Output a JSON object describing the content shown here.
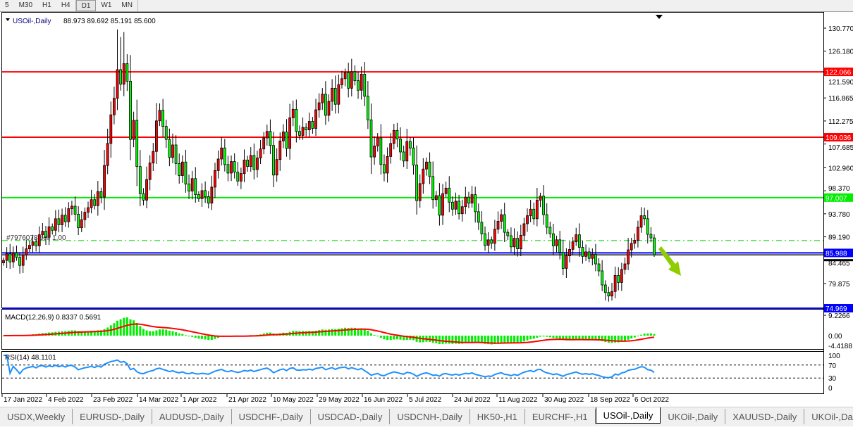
{
  "toolbar": {
    "timeframes": [
      {
        "label": "5",
        "active": false
      },
      {
        "label": "M30",
        "active": false
      },
      {
        "label": "H1",
        "active": false
      },
      {
        "label": "H4",
        "active": false
      },
      {
        "label": "D1",
        "active": true
      },
      {
        "label": "W1",
        "active": false
      },
      {
        "label": "MN",
        "active": false
      }
    ]
  },
  "chart": {
    "symbol": "USOil-,Daily",
    "ohlc_text": "88.973 89.692 85.191 85.600",
    "last_ohlc": [
      88.973,
      89.692,
      85.191,
      85.6
    ],
    "colors": {
      "bull_body": "#ff0000",
      "bear_body": "#00ff00",
      "wick": "#000000"
    },
    "price_ticks": [
      "130.770",
      "126.180",
      "121.590",
      "116.865",
      "112.275",
      "107.685",
      "102.960",
      "98.370",
      "93.780",
      "89.190",
      "84.465",
      "79.875"
    ],
    "price_range": [
      74.2,
      133.8
    ],
    "closes": [
      84.5,
      85.8,
      84.2,
      86.0,
      85.1,
      83.5,
      85.6,
      86.8,
      87.5,
      88.2,
      87.4,
      89.6,
      90.3,
      89.1,
      91.2,
      90.5,
      92.8,
      91.6,
      93.5,
      92.2,
      94.8,
      95.3,
      93.7,
      91.0,
      92.6,
      94.1,
      95.0,
      96.6,
      95.4,
      98.2,
      97.1,
      103.4,
      107.8,
      113.5,
      116.8,
      122.5,
      119.6,
      123.7,
      120.2,
      108.6,
      112.4,
      103.2,
      97.8,
      96.5,
      100.6,
      103.9,
      106.2,
      112.3,
      114.4,
      111.2,
      108.6,
      105.0,
      107.5,
      103.8,
      101.4,
      104.1,
      99.7,
      98.3,
      100.8,
      97.6,
      96.8,
      98.4,
      97.2,
      95.9,
      99.1,
      102.4,
      104.7,
      106.9,
      103.6,
      101.9,
      104.2,
      102.1,
      100.3,
      101.8,
      104.5,
      103.2,
      105.4,
      102.6,
      104.9,
      106.7,
      108.9,
      110.2,
      107.4,
      101.5,
      104.6,
      108.3,
      110.1,
      106.8,
      112.9,
      114.6,
      110.2,
      109.4,
      111.0,
      110.5,
      112.2,
      110.8,
      114.5,
      115.9,
      117.6,
      113.4,
      116.2,
      118.8,
      115.6,
      119.5,
      120.7,
      121.9,
      118.8,
      122.1,
      120.3,
      118.4,
      121.6,
      117.2,
      112.5,
      105.1,
      107.3,
      108.9,
      103.6,
      101.9,
      105.2,
      107.8,
      110.4,
      108.7,
      106.1,
      104.3,
      108.2,
      106.9,
      103.5,
      96.4,
      99.8,
      102.7,
      104.1,
      101.2,
      96.6,
      97.4,
      93.5,
      97.8,
      98.9,
      96.1,
      94.7,
      96.3,
      93.8,
      95.2,
      97.1,
      95.9,
      97.6,
      94.2,
      92.1,
      89.8,
      87.5,
      88.6,
      87.9,
      90.7,
      92.3,
      93.6,
      90.1,
      89.4,
      87.2,
      88.9,
      86.8,
      89.5,
      91.8,
      93.4,
      94.7,
      92.8,
      96.5,
      97.3,
      93.6,
      91.1,
      89.8,
      87.4,
      88.6,
      86.1,
      82.9,
      85.4,
      86.7,
      88.2,
      89.6,
      87.1,
      85.3,
      86.2,
      84.9,
      85.7,
      83.8,
      82.4,
      79.6,
      78.1,
      77.4,
      78.3,
      81.5,
      80.1,
      82.7,
      83.8,
      86.6,
      87.9,
      88.5,
      91.1,
      93.4,
      92.8,
      89.7,
      88.973,
      85.6
    ],
    "levels": [
      {
        "price": 122.066,
        "label": "122.066",
        "color": "#ff0000",
        "style": "solid"
      },
      {
        "price": 109.036,
        "label": "109.036",
        "color": "#ff0000",
        "style": "solid"
      },
      {
        "price": 97.007,
        "label": "97.007",
        "color": "#00ee00",
        "style": "solid"
      },
      {
        "price": 88.45,
        "label": "",
        "color": "#00cc00",
        "style": "dashdot"
      },
      {
        "price": 85.988,
        "label": "85.988",
        "color": "#0000ff",
        "style": "solid"
      },
      {
        "price": 85.6,
        "label": "",
        "color": "#000000",
        "style": "solid"
      },
      {
        "price": 74.969,
        "label": "74.969",
        "color": "#0000ff",
        "style": "solid"
      }
    ],
    "order_label": "#7976078 sell 1.00",
    "arrow_color": "#8fcc00",
    "date_labels": [
      "17 Jan 2022",
      "4 Feb 2022",
      "23 Feb 2022",
      "14 Mar 2022",
      "1 Apr 2022",
      "21 Apr 2022",
      "10 May 2022",
      "29 May 2022",
      "16 Jun 2022",
      "5 Jul 2022",
      "24 Jul 2022",
      "11 Aug 2022",
      "30 Aug 2022",
      "18 Sep 2022",
      "6 Oct 2022"
    ]
  },
  "macd": {
    "label": "MACD(12,26,9) 0.8337 0.5691",
    "ticks": [
      "9.2266",
      "0.00",
      "-4.4188"
    ],
    "range": [
      -4.4188,
      9.2266
    ],
    "hist_color": "#00ee00",
    "signal_color": "#ff0000"
  },
  "rsi": {
    "label": "RSI(14) 48.1101",
    "ticks": [
      "100",
      "70",
      "30",
      "0"
    ],
    "levels": [
      70,
      30
    ],
    "color": "#1e90ff"
  },
  "tabs": [
    {
      "label": "USDX,Weekly",
      "active": false
    },
    {
      "label": "EURUSD-,Daily",
      "active": false
    },
    {
      "label": "AUDUSD-,Daily",
      "active": false
    },
    {
      "label": "USDCHF-,Daily",
      "active": false
    },
    {
      "label": "USDCAD-,Daily",
      "active": false
    },
    {
      "label": "USDCNH-,Daily",
      "active": false
    },
    {
      "label": "HK50-,H1",
      "active": false
    },
    {
      "label": "EURCHF-,H1",
      "active": false
    },
    {
      "label": "USOil-,Daily",
      "active": true
    },
    {
      "label": "UKOil-,Daily",
      "active": false
    },
    {
      "label": "XAUUSD-,Daily",
      "active": false
    },
    {
      "label": "UKOil-,Da",
      "active": false
    }
  ]
}
